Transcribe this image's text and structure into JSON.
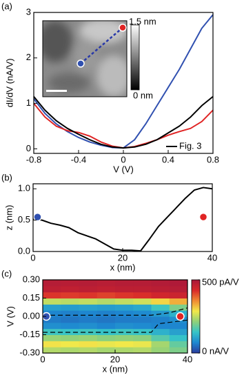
{
  "chart_data": [
    {
      "type": "line",
      "panel_label": "(a)",
      "xlabel": "V (V)",
      "ylabel": "dI/dV (nA/V)",
      "x": [
        -0.8,
        -0.7,
        -0.6,
        -0.5,
        -0.4,
        -0.3,
        -0.2,
        -0.1,
        0,
        0.1,
        0.2,
        0.3,
        0.4,
        0.5,
        0.6,
        0.7,
        0.8
      ],
      "series": [
        {
          "color": "#3050b0",
          "values": [
            1.1,
            0.78,
            0.55,
            0.38,
            0.25,
            0.15,
            0.08,
            0.03,
            0.02,
            0.2,
            0.55,
            0.95,
            1.35,
            1.75,
            2.2,
            2.65,
            2.95
          ]
        },
        {
          "color": "#e02424",
          "values": [
            1.0,
            0.7,
            0.5,
            0.4,
            0.36,
            0.28,
            0.15,
            0.06,
            0.02,
            0.05,
            0.12,
            0.2,
            0.3,
            0.38,
            0.45,
            0.6,
            0.85
          ]
        },
        {
          "name": "Fig. 3",
          "color": "#000000",
          "values": [
            1.15,
            0.85,
            0.62,
            0.45,
            0.32,
            0.2,
            0.1,
            0.04,
            0.02,
            0.04,
            0.1,
            0.2,
            0.35,
            0.5,
            0.7,
            0.95,
            1.15
          ]
        }
      ],
      "xlim": [
        -0.8,
        0.8
      ],
      "ylim": [
        -0.1,
        3
      ],
      "xticks": [
        -0.8,
        -0.4,
        0,
        0.4,
        0.8
      ],
      "yticks": [
        0,
        1,
        2,
        3
      ],
      "legend": "lower right",
      "inset": {
        "colorbar_ticks": [
          {
            "value": 1.5,
            "label": "1.5 nm"
          },
          {
            "value": 0,
            "label": "0 nm"
          }
        ]
      }
    },
    {
      "type": "line",
      "panel_label": "(b)",
      "xlabel": "x (nm)",
      "ylabel": "z (nm)",
      "x": [
        0,
        2,
        4,
        6,
        8,
        10,
        12,
        14,
        16,
        18,
        20,
        22,
        24,
        26,
        28,
        30,
        32,
        34,
        36,
        38,
        40
      ],
      "series": [
        {
          "color": "#000000",
          "values": [
            0.52,
            0.5,
            0.45,
            0.42,
            0.38,
            0.3,
            0.25,
            0.2,
            0.12,
            0.04,
            0.02,
            0.02,
            0.01,
            0.2,
            0.4,
            0.55,
            0.7,
            0.85,
            0.98,
            1.02,
            1.0
          ]
        }
      ],
      "markers": [
        {
          "x": 1,
          "y": 0.55,
          "color": "#3050b0"
        },
        {
          "x": 38,
          "y": 0.55,
          "color": "#e02424"
        }
      ],
      "xlim": [
        0,
        40
      ],
      "ylim": [
        0,
        1.08
      ],
      "xticks": [
        0,
        20,
        40
      ],
      "yticks": [
        {
          "value": 0,
          "label": "0.0"
        },
        0.5,
        {
          "value": 1,
          "label": "1.0"
        }
      ]
    },
    {
      "type": "heatmap",
      "panel_label": "(c)",
      "xlabel": "x (nm)",
      "ylabel": "V (V)",
      "x": [
        0,
        5,
        10,
        15,
        20,
        25,
        30,
        35,
        40
      ],
      "y": [
        -0.3,
        -0.25,
        -0.2,
        -0.15,
        -0.1,
        -0.05,
        0,
        0.05,
        0.1,
        0.15,
        0.2,
        0.25,
        0.3
      ],
      "z": [
        [
          240,
          235,
          240,
          230,
          235,
          240,
          220,
          200
        ],
        [
          290,
          285,
          290,
          280,
          285,
          280,
          230,
          180
        ],
        [
          220,
          215,
          220,
          210,
          215,
          210,
          170,
          140
        ],
        [
          150,
          145,
          150,
          140,
          150,
          145,
          120,
          100
        ],
        [
          80,
          75,
          80,
          70,
          80,
          75,
          70,
          70
        ],
        [
          60,
          55,
          60,
          55,
          60,
          60,
          65,
          80
        ],
        [
          70,
          65,
          70,
          65,
          70,
          75,
          90,
          120
        ],
        [
          100,
          95,
          100,
          95,
          100,
          110,
          150,
          200
        ],
        [
          250,
          245,
          250,
          240,
          250,
          260,
          300,
          330
        ],
        [
          420,
          415,
          420,
          410,
          420,
          425,
          440,
          450
        ],
        [
          470,
          465,
          470,
          465,
          470,
          470,
          475,
          480
        ],
        [
          480,
          478,
          480,
          476,
          480,
          480,
          485,
          490
        ]
      ],
      "colormap": [
        "#2a3b9c",
        "#1e88d0",
        "#36c4c8",
        "#8fd17a",
        "#f2e84a",
        "#f08a32",
        "#d8292a",
        "#a8183a"
      ],
      "colorbar_ticks": [
        {
          "value": 500,
          "label": "500 pA/V"
        },
        {
          "value": 0,
          "label": "0 nA/V"
        }
      ],
      "contours": [
        {
          "x": [
            0,
            30,
            35,
            40
          ],
          "y": [
            0.01,
            0.01,
            0.03,
            0.07
          ]
        },
        {
          "x": [
            0,
            30,
            32,
            40
          ],
          "y": [
            -0.13,
            -0.13,
            -0.06,
            -0.03
          ]
        }
      ],
      "markers": [
        {
          "x": 1,
          "y": 0,
          "color": "#3050b0"
        },
        {
          "x": 38,
          "y": 0,
          "color": "#e02424"
        }
      ],
      "xlim": [
        0,
        40
      ],
      "ylim": [
        -0.3,
        0.3
      ],
      "xticks": [
        0,
        20,
        40
      ],
      "yticks": [
        {
          "value": 0.3,
          "label": "0.30"
        },
        {
          "value": 0.15,
          "label": "0.15"
        },
        {
          "value": 0,
          "label": "0.00"
        },
        {
          "value": -0.15,
          "label": "-0.15"
        },
        {
          "value": -0.3,
          "label": "-0.30"
        }
      ]
    }
  ]
}
